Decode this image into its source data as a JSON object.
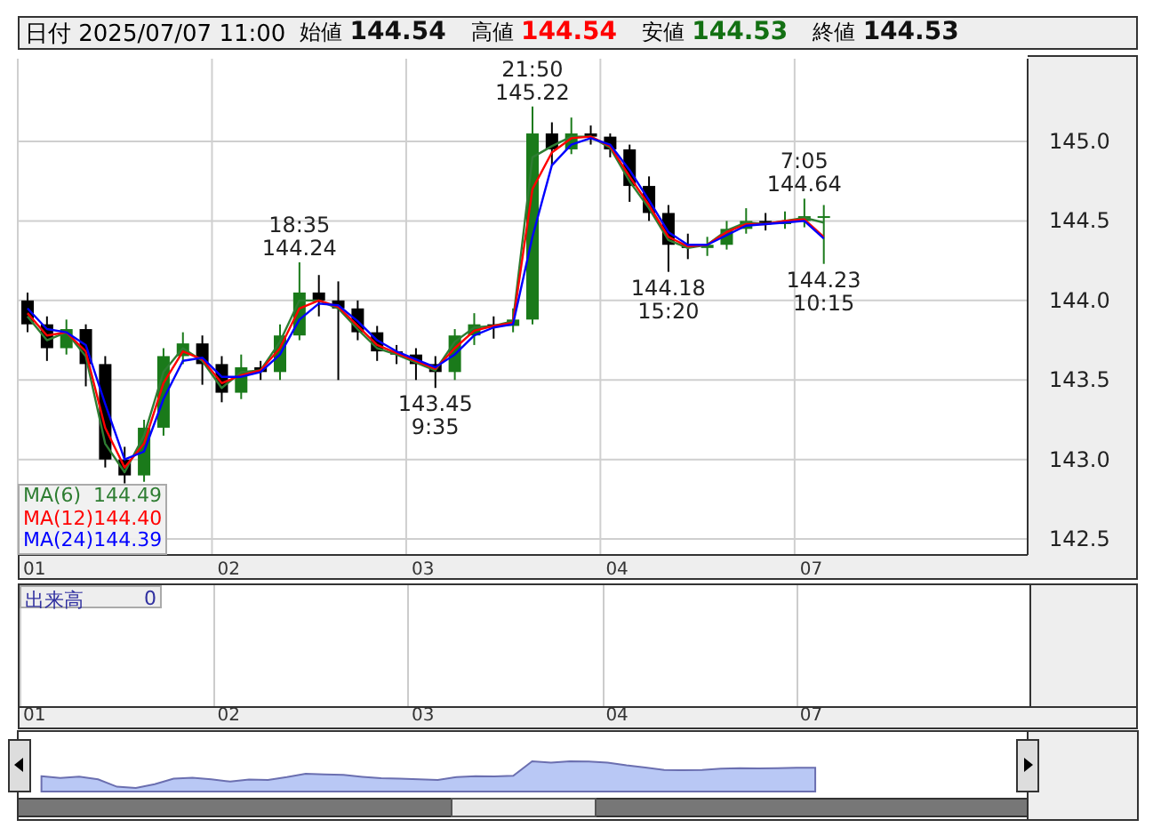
{
  "chart_data": {
    "type": "candlestick",
    "title": "日付 2025/07/07 11:00",
    "annotations": [
      "始値 144.54",
      "高値 144.54",
      "安値 144.53",
      "終値 144.53",
      "出来高 0",
      "144.49",
      "144.40",
      "144.39",
      {
        "text": "18:35\n144.24",
        "y": 144.24
      },
      {
        "text": "143.45\n9:35",
        "y": 143.45
      },
      {
        "text": "21:50\n145.22",
        "y": 145.22
      },
      {
        "text": "144.18\n15:20",
        "y": 144.18
      },
      {
        "text": "7:05\n144.64",
        "y": 144.64
      },
      {
        "text": "144.23\n10:15",
        "y": 144.23
      }
    ],
    "categories": [
      "01",
      null,
      null,
      null,
      null,
      null,
      null,
      null,
      null,
      null,
      "02",
      null,
      null,
      null,
      null,
      null,
      null,
      null,
      null,
      null,
      "03",
      null,
      null,
      null,
      null,
      null,
      null,
      null,
      null,
      null,
      "04",
      null,
      null,
      null,
      null,
      null,
      null,
      null,
      null,
      null,
      "07",
      null,
      null,
      null,
      null,
      null,
      null,
      null,
      null,
      null,
      null,
      null
    ],
    "colors": [
      "#000000",
      "#000000",
      "#1a7a1a",
      "#000000",
      "#000000",
      "#000000",
      "#1a7a1a",
      "#1a7a1a",
      "#1a7a1a",
      "#000000",
      "#000000",
      "#1a7a1a",
      "#000000",
      "#1a7a1a",
      "#1a7a1a",
      "#000000",
      "#000000",
      "#000000",
      "#000000",
      "#000000",
      "#000000",
      "#000000",
      "#1a7a1a",
      "#1a7a1a",
      "#000000",
      "#1a7a1a",
      "#1a7a1a",
      "#000000",
      "#1a7a1a",
      "#000000",
      "#000000",
      "#000000",
      "#000000",
      "#000000",
      "#000000",
      "#1a7a1a",
      "#1a7a1a",
      "#1a7a1a",
      "#000000",
      "#1a7a1a",
      "#1a7a1a",
      "#1a7a1a",
      null,
      null,
      null,
      null,
      null,
      null,
      null,
      null,
      null,
      null
    ],
    "ohlc": [
      [
        144.0,
        144.05,
        143.8,
        143.85
      ],
      [
        143.85,
        143.9,
        143.62,
        143.7
      ],
      [
        143.7,
        143.88,
        143.66,
        143.82
      ],
      [
        143.82,
        143.85,
        143.46,
        143.6
      ],
      [
        143.6,
        143.65,
        142.95,
        143.0
      ],
      [
        143.0,
        143.08,
        142.85,
        142.9
      ],
      [
        142.9,
        143.25,
        142.86,
        143.2
      ],
      [
        143.2,
        143.7,
        143.15,
        143.65
      ],
      [
        143.65,
        143.8,
        143.6,
        143.73
      ],
      [
        143.73,
        143.78,
        143.47,
        143.6
      ],
      [
        143.6,
        143.65,
        143.36,
        143.42
      ],
      [
        143.42,
        143.66,
        143.38,
        143.58
      ],
      [
        143.58,
        143.62,
        143.5,
        143.55
      ],
      [
        143.55,
        143.85,
        143.5,
        143.78
      ],
      [
        143.78,
        144.24,
        143.75,
        144.05
      ],
      [
        144.05,
        144.16,
        143.9,
        144.0
      ],
      [
        144.0,
        144.12,
        143.5,
        143.95
      ],
      [
        143.95,
        144.0,
        143.75,
        143.8
      ],
      [
        143.8,
        143.84,
        143.62,
        143.68
      ],
      [
        143.68,
        143.72,
        143.6,
        143.66
      ],
      [
        143.66,
        143.7,
        143.5,
        143.6
      ],
      [
        143.6,
        143.65,
        143.45,
        143.55
      ],
      [
        143.55,
        143.82,
        143.5,
        143.78
      ],
      [
        143.78,
        143.92,
        143.72,
        143.85
      ],
      [
        143.85,
        143.9,
        143.76,
        143.84
      ],
      [
        143.84,
        143.95,
        143.8,
        143.88
      ],
      [
        143.88,
        145.22,
        143.85,
        145.05
      ],
      [
        145.05,
        145.12,
        144.85,
        144.95
      ],
      [
        144.95,
        145.15,
        144.92,
        145.05
      ],
      [
        145.05,
        145.1,
        144.98,
        145.03
      ],
      [
        145.03,
        145.05,
        144.9,
        144.95
      ],
      [
        144.95,
        144.98,
        144.62,
        144.72
      ],
      [
        144.72,
        144.78,
        144.5,
        144.55
      ],
      [
        144.55,
        144.6,
        144.18,
        144.35
      ],
      [
        144.35,
        144.42,
        144.26,
        144.33
      ],
      [
        144.33,
        144.4,
        144.28,
        144.35
      ],
      [
        144.35,
        144.5,
        144.32,
        144.45
      ],
      [
        144.45,
        144.58,
        144.42,
        144.5
      ],
      [
        144.5,
        144.55,
        144.44,
        144.48
      ],
      [
        144.48,
        144.56,
        144.45,
        144.5
      ],
      [
        144.5,
        144.64,
        144.46,
        144.53
      ],
      [
        144.53,
        144.6,
        144.23,
        144.53
      ],
      null,
      null,
      null,
      null,
      null,
      null,
      null,
      null,
      null,
      null
    ],
    "series": [
      {
        "type": "line",
        "name": "MA(6)",
        "color": "#2e7d32",
        "values": [
          143.9,
          143.75,
          143.8,
          143.65,
          143.1,
          142.92,
          143.15,
          143.55,
          143.7,
          143.62,
          143.45,
          143.55,
          143.56,
          143.74,
          144.0,
          144.0,
          143.95,
          143.82,
          143.7,
          143.66,
          143.61,
          143.56,
          143.74,
          143.83,
          143.84,
          143.87,
          144.9,
          144.97,
          145.03,
          145.03,
          144.96,
          144.75,
          144.58,
          144.38,
          144.33,
          144.35,
          144.44,
          144.49,
          144.48,
          144.5,
          144.52,
          144.49,
          null,
          null,
          null,
          null,
          null,
          null,
          null,
          null,
          null,
          null
        ]
      },
      {
        "type": "line",
        "name": "MA(12)",
        "color": "#ff0000",
        "values": [
          143.92,
          143.78,
          143.8,
          143.68,
          143.2,
          142.95,
          143.1,
          143.48,
          143.68,
          143.63,
          143.48,
          143.53,
          143.56,
          143.7,
          143.95,
          144.0,
          143.96,
          143.84,
          143.72,
          143.67,
          143.62,
          143.57,
          143.7,
          143.81,
          143.84,
          143.86,
          144.7,
          144.93,
          145.02,
          145.03,
          144.97,
          144.78,
          144.6,
          144.4,
          144.34,
          144.35,
          144.43,
          144.48,
          144.48,
          144.5,
          144.51,
          144.4,
          null,
          null,
          null,
          null,
          null,
          null,
          null,
          null,
          null,
          null
        ]
      },
      {
        "type": "line",
        "name": "MA(24)",
        "color": "#0000ff",
        "values": [
          143.95,
          143.82,
          143.8,
          143.72,
          143.35,
          143.0,
          143.05,
          143.38,
          143.62,
          143.64,
          143.52,
          143.52,
          143.55,
          143.66,
          143.88,
          143.98,
          143.97,
          143.87,
          143.75,
          143.68,
          143.63,
          143.58,
          143.66,
          143.78,
          143.83,
          143.85,
          144.4,
          144.85,
          144.98,
          145.02,
          144.98,
          144.82,
          144.63,
          144.43,
          144.35,
          144.35,
          144.41,
          144.47,
          144.48,
          144.49,
          144.5,
          144.39,
          null,
          null,
          null,
          null,
          null,
          null,
          null,
          null,
          null,
          null
        ]
      }
    ],
    "ylim": [
      142.4,
      145.52
    ],
    "yticks": [
      {
        "value": 142.5,
        "label": "142.5"
      },
      {
        "value": 143,
        "label": "143.0"
      },
      {
        "value": 143.5,
        "label": "143.5"
      },
      {
        "value": 144,
        "label": "144.0"
      },
      {
        "value": 144.5,
        "label": "144.5"
      },
      {
        "value": 145,
        "label": "145.0"
      }
    ],
    "grid": true,
    "legend": "bottom left"
  }
}
